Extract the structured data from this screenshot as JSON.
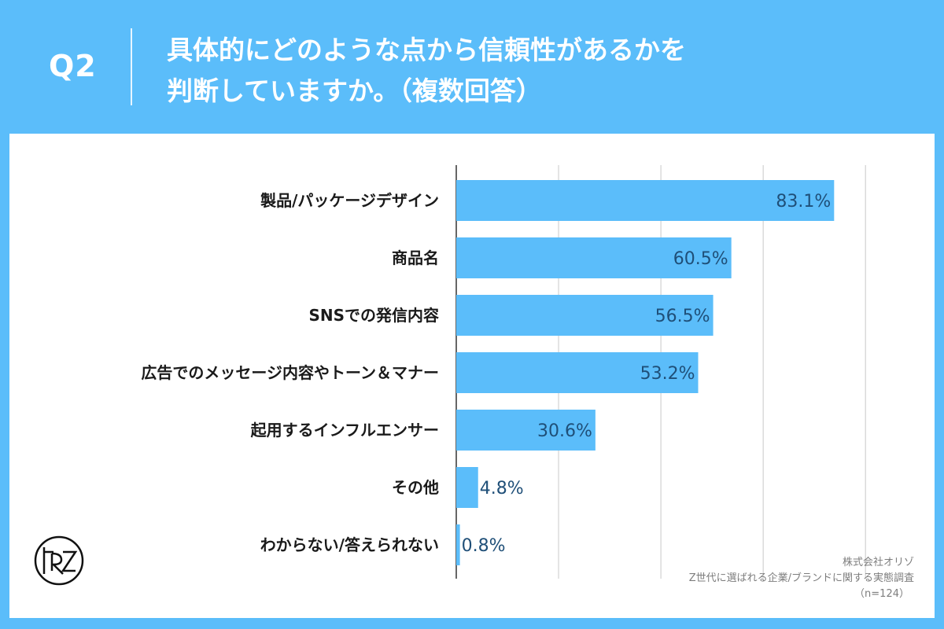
{
  "header": {
    "question_number": "Q2",
    "title_line1": "具体的にどのような点から信頼性があるかを",
    "title_line2": "判断していますか。（複数回答）"
  },
  "chart_data": {
    "type": "bar",
    "orientation": "horizontal",
    "categories": [
      "製品/パッケージデザイン",
      "商品名",
      "SNSでの発信内容",
      "広告でのメッセージ内容やトーン＆マナー",
      "起用するインフルエンサー",
      "その他",
      "わからない/答えられない"
    ],
    "values": [
      83.1,
      60.5,
      56.5,
      53.2,
      30.6,
      4.8,
      0.8
    ],
    "value_labels": [
      "83.1%",
      "60.5%",
      "56.5%",
      "53.2%",
      "30.6%",
      "4.8%",
      "0.8%"
    ],
    "xlim": [
      0,
      90
    ],
    "grid": true,
    "bar_color": "#5bbdfa",
    "label_color": "#1f4f78"
  },
  "footer": {
    "company": "株式会社オリゾ",
    "survey": "Z世代に選ばれる企業/ブランドに関する実態調査",
    "sample": "（n=124）"
  },
  "logo": {
    "icon": "orizo-logo-icon"
  }
}
